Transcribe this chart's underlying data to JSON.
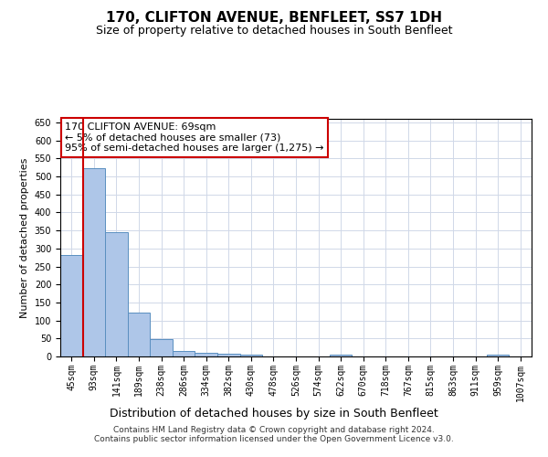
{
  "title": "170, CLIFTON AVENUE, BENFLEET, SS7 1DH",
  "subtitle": "Size of property relative to detached houses in South Benfleet",
  "xlabel": "Distribution of detached houses by size in South Benfleet",
  "ylabel": "Number of detached properties",
  "footer_line1": "Contains HM Land Registry data © Crown copyright and database right 2024.",
  "footer_line2": "Contains public sector information licensed under the Open Government Licence v3.0.",
  "annotation_line1": "170 CLIFTON AVENUE: 69sqm",
  "annotation_line2": "← 5% of detached houses are smaller (73)",
  "annotation_line3": "95% of semi-detached houses are larger (1,275) →",
  "categories": [
    "45sqm",
    "93sqm",
    "141sqm",
    "189sqm",
    "238sqm",
    "286sqm",
    "334sqm",
    "382sqm",
    "430sqm",
    "478sqm",
    "526sqm",
    "574sqm",
    "622sqm",
    "670sqm",
    "718sqm",
    "767sqm",
    "815sqm",
    "863sqm",
    "911sqm",
    "959sqm",
    "1007sqm"
  ],
  "values": [
    281,
    524,
    346,
    122,
    47,
    15,
    10,
    8,
    5,
    0,
    0,
    0,
    5,
    0,
    0,
    0,
    0,
    0,
    0,
    5,
    0
  ],
  "bar_color": "#aec6e8",
  "bar_edge_color": "#5a8fc0",
  "ylim": [
    0,
    660
  ],
  "yticks": [
    0,
    50,
    100,
    150,
    200,
    250,
    300,
    350,
    400,
    450,
    500,
    550,
    600,
    650
  ],
  "grid_color": "#d0d8e8",
  "annotation_box_color": "#ffffff",
  "annotation_box_edge_color": "#cc0000",
  "redline_color": "#cc0000",
  "title_fontsize": 11,
  "subtitle_fontsize": 9,
  "xlabel_fontsize": 9,
  "ylabel_fontsize": 8,
  "tick_fontsize": 7,
  "annotation_fontsize": 8,
  "footer_fontsize": 6.5
}
